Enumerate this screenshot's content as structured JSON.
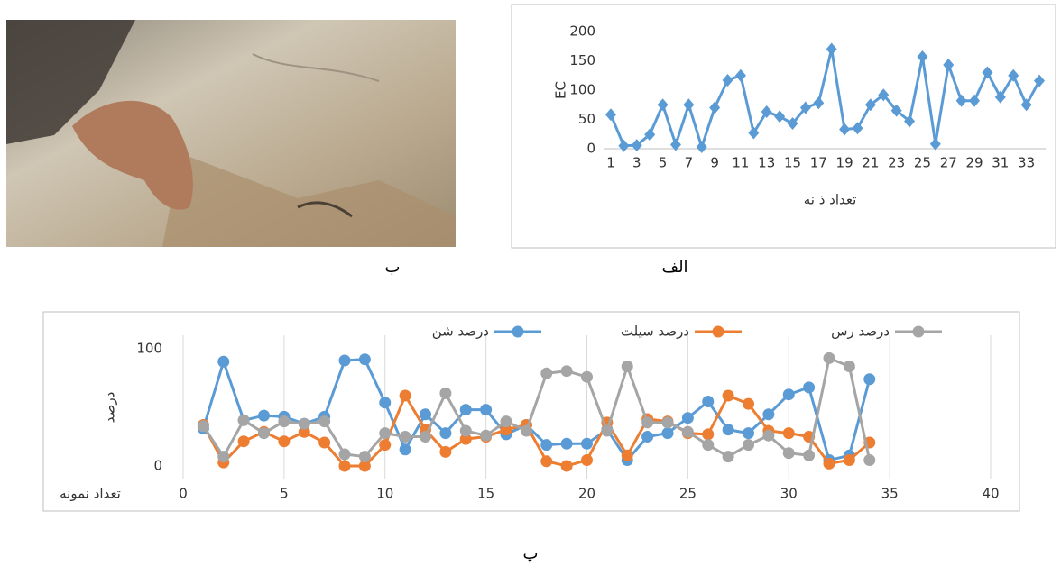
{
  "image": {
    "caption": "ب"
  },
  "chart_data": [
    {
      "type": "line",
      "caption": "الف",
      "y_label": "EC",
      "x_label": "تعداد ذ نه",
      "marker": "diamond",
      "categories": [
        1,
        null,
        3,
        null,
        5,
        null,
        7,
        null,
        9,
        null,
        11,
        null,
        13,
        null,
        15,
        null,
        17,
        null,
        19,
        null,
        21,
        null,
        23,
        null,
        25,
        null,
        27,
        null,
        29,
        null,
        31,
        null,
        33,
        null
      ],
      "series": [
        {
          "name": "EC",
          "color": "#5b9bd5",
          "values": [
            58,
            5,
            6,
            24,
            75,
            7,
            75,
            3,
            70,
            117,
            125,
            27,
            63,
            55,
            43,
            70,
            78,
            170,
            33,
            35,
            75,
            92,
            65,
            47,
            157,
            8,
            143,
            82,
            82,
            130,
            88,
            125,
            75,
            116
          ]
        }
      ],
      "ylim": [
        0,
        200
      ],
      "yticks": [
        0,
        50,
        100,
        150,
        200
      ],
      "grid": false,
      "legend": "none"
    },
    {
      "type": "line",
      "caption": "پ",
      "y_label": "درصد",
      "x_label": "تعداد نمونه",
      "marker": "circle",
      "x": [
        1,
        2,
        3,
        4,
        5,
        6,
        7,
        8,
        9,
        10,
        11,
        12,
        13,
        14,
        15,
        16,
        17,
        18,
        19,
        20,
        21,
        22,
        23,
        24,
        25,
        26,
        27,
        28,
        29,
        30,
        31,
        32,
        33,
        34
      ],
      "series": [
        {
          "name": "درصد شن",
          "color": "#5b9bd5",
          "values": [
            32,
            89,
            39,
            43,
            42,
            36,
            42,
            90,
            91,
            54,
            14,
            44,
            28,
            48,
            48,
            27,
            35,
            18,
            19,
            19,
            31,
            5,
            25,
            28,
            41,
            55,
            31,
            28,
            44,
            61,
            67,
            5,
            9,
            74
          ]
        },
        {
          "name": "درصد سیلت",
          "color": "#ed7d31",
          "values": [
            35,
            3,
            21,
            29,
            21,
            29,
            20,
            0,
            0,
            18,
            60,
            31,
            12,
            23,
            25,
            31,
            35,
            4,
            0,
            5,
            37,
            9,
            40,
            38,
            28,
            27,
            60,
            53,
            30,
            28,
            25,
            2,
            5,
            20
          ]
        },
        {
          "name": "درصد رس",
          "color": "#a5a5a5",
          "values": [
            34,
            8,
            39,
            28,
            38,
            36,
            38,
            10,
            8,
            28,
            25,
            25,
            62,
            30,
            26,
            38,
            30,
            79,
            81,
            76,
            30,
            85,
            37,
            37,
            29,
            18,
            8,
            18,
            26,
            11,
            9,
            92,
            85,
            5
          ]
        }
      ],
      "xlim": [
        0,
        40
      ],
      "xticks": [
        0,
        5,
        10,
        15,
        20,
        25,
        30,
        35,
        40
      ],
      "ylim": [
        0,
        100
      ],
      "yticks": [
        0,
        100
      ],
      "grid": true,
      "legend": "top"
    }
  ]
}
